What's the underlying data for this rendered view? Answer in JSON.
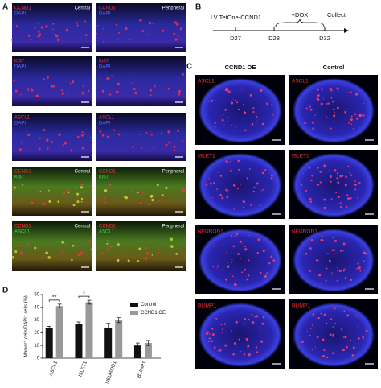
{
  "panel_a": {
    "label": "A",
    "rows": [
      {
        "left": {
          "markers": [
            {
              "text": "CCND1",
              "color": "#ff3030"
            },
            {
              "text": "DAPI",
              "color": "#5a6cff"
            }
          ],
          "region": "Central"
        },
        "right": {
          "markers": [
            {
              "text": "CCND1",
              "color": "#ff3030"
            },
            {
              "text": "DAPI",
              "color": "#5a6cff"
            }
          ],
          "region": "Peripheral"
        }
      },
      {
        "left": {
          "markers": [
            {
              "text": "Ki67",
              "color": "#ff3030"
            },
            {
              "text": "DAPI",
              "color": "#5a6cff"
            }
          ],
          "region": ""
        },
        "right": {
          "markers": [
            {
              "text": "Ki67",
              "color": "#ff3030"
            },
            {
              "text": "DAPI",
              "color": "#5a6cff"
            }
          ],
          "region": ""
        }
      },
      {
        "left": {
          "markers": [
            {
              "text": "ASCL1",
              "color": "#ff3030"
            },
            {
              "text": "DAPI",
              "color": "#5a6cff"
            }
          ],
          "region": ""
        },
        "right": {
          "markers": [
            {
              "text": "ASCL1",
              "color": "#ff3030"
            },
            {
              "text": "DAPI",
              "color": "#5a6cff"
            }
          ],
          "region": ""
        }
      },
      {
        "left": {
          "markers": [
            {
              "text": "CCND1",
              "color": "#ff3030"
            },
            {
              "text": "Ki67",
              "color": "#40e040"
            }
          ],
          "region": "Central"
        },
        "right": {
          "markers": [
            {
              "text": "CCND1",
              "color": "#ff3030"
            },
            {
              "text": "Ki67",
              "color": "#40e040"
            }
          ],
          "region": "Peripheral"
        }
      },
      {
        "left": {
          "markers": [
            {
              "text": "CCND1",
              "color": "#ff3030"
            },
            {
              "text": "ASCL1",
              "color": "#40e040"
            }
          ],
          "region": "Central"
        },
        "right": {
          "markers": [
            {
              "text": "CCND1",
              "color": "#ff3030"
            },
            {
              "text": "ASCL1",
              "color": "#40e040"
            }
          ],
          "region": "Peripheral"
        }
      }
    ]
  },
  "panel_b": {
    "label": "B",
    "construct": "LV TetOne-CCND1",
    "treatment": "+DOX",
    "collect": "Collect",
    "days": [
      "D27",
      "D28",
      "D32"
    ]
  },
  "panel_c": {
    "label": "C",
    "columns": [
      "CCND1 OE",
      "Control"
    ],
    "rows": [
      "ASCL1",
      "ISLET1",
      "NEUROD1",
      "BLIMP1"
    ],
    "marker_color": "#ff3030"
  },
  "chart_data": {
    "type": "bar",
    "label": "D",
    "y_label": "Marker⁺ cells/DAPI⁺ cells (%)",
    "categories": [
      "ASCL1",
      "ISLET1",
      "NEUROD1",
      "BLIMP1"
    ],
    "series": [
      {
        "name": "Control",
        "color": "#111111",
        "values": [
          24,
          27,
          24,
          10
        ],
        "errors": [
          1,
          1.5,
          3.5,
          2
        ]
      },
      {
        "name": "CCND1 OE",
        "color": "#999999",
        "values": [
          41,
          44,
          30,
          12
        ],
        "errors": [
          1.5,
          1.5,
          2,
          2
        ]
      }
    ],
    "annotations": [
      "**",
      "*",
      null,
      null
    ],
    "ylim": [
      0,
      50
    ],
    "yticks": [
      0,
      10,
      20,
      30,
      40,
      50
    ],
    "legend": "upper right"
  }
}
